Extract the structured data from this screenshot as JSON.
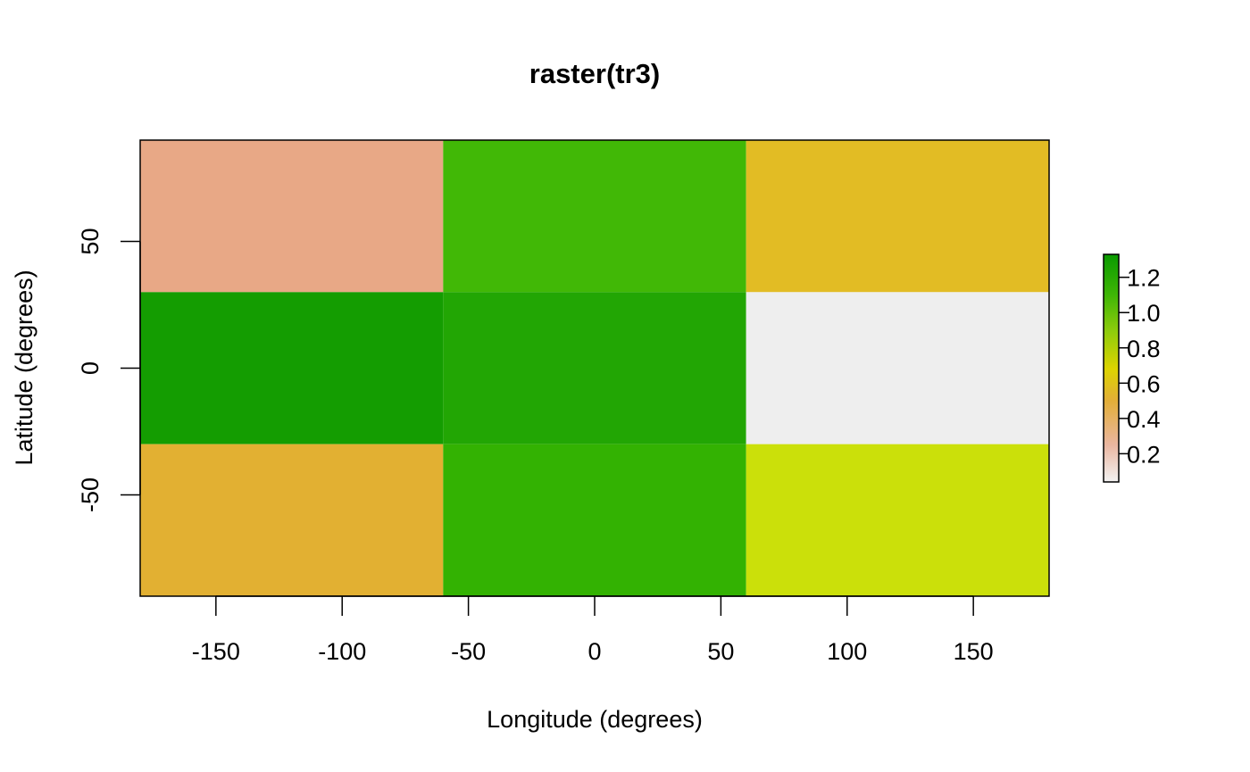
{
  "chart_data": {
    "type": "heatmap",
    "title": "raster(tr3)",
    "xlabel": "Longitude (degrees)",
    "ylabel": "Latitude (degrees)",
    "xlim": [
      -180,
      180
    ],
    "ylim": [
      -90,
      90
    ],
    "x_ticks": [
      -150,
      -100,
      -50,
      0,
      50,
      100,
      150
    ],
    "x_tick_labels": [
      "-150",
      "-100",
      "-50",
      "0",
      "50",
      "100",
      "150"
    ],
    "y_ticks": [
      -50,
      0,
      50
    ],
    "y_tick_labels": [
      "-50",
      "0",
      "50"
    ],
    "grid": false,
    "cells": [
      {
        "x0": -180,
        "x1": -60,
        "y0": 30,
        "y1": 90,
        "value": 0.33,
        "color": "#E8A886"
      },
      {
        "x0": -60,
        "x1": 60,
        "y0": 30,
        "y1": 90,
        "value": 1.07,
        "color": "#41B806"
      },
      {
        "x0": 60,
        "x1": 180,
        "y0": 30,
        "y1": 90,
        "value": 0.58,
        "color": "#E2BC24"
      },
      {
        "x0": -180,
        "x1": -60,
        "y0": -30,
        "y1": 30,
        "value": 1.31,
        "color": "#149D01"
      },
      {
        "x0": -60,
        "x1": 60,
        "y0": -30,
        "y1": 30,
        "value": 1.23,
        "color": "#22A604"
      },
      {
        "x0": 60,
        "x1": 180,
        "y0": -30,
        "y1": 30,
        "value": 0.04,
        "color": "#EEEEEE"
      },
      {
        "x0": -180,
        "x1": -60,
        "y0": -90,
        "y1": -30,
        "value": 0.52,
        "color": "#E2B032"
      },
      {
        "x0": -60,
        "x1": 60,
        "y0": -90,
        "y1": -30,
        "value": 1.12,
        "color": "#33B202"
      },
      {
        "x0": 60,
        "x1": 180,
        "y0": -90,
        "y1": -30,
        "value": 0.78,
        "color": "#CBE00A"
      }
    ],
    "legend": {
      "placement": "right",
      "zlim": [
        0.04,
        1.33
      ],
      "ticks": [
        0.2,
        0.4,
        0.6,
        0.8,
        1.0,
        1.2
      ],
      "tick_labels": [
        "0.2",
        "0.4",
        "0.6",
        "0.8",
        "1.0",
        "1.2"
      ],
      "gradient_stops": [
        {
          "value": 0.04,
          "color": "#F2F2F2"
        },
        {
          "value": 0.25,
          "color": "#EAB6A0"
        },
        {
          "value": 0.5,
          "color": "#E2AE38"
        },
        {
          "value": 0.68,
          "color": "#DDD400"
        },
        {
          "value": 0.9,
          "color": "#8CCB0C"
        },
        {
          "value": 1.1,
          "color": "#3FB606"
        },
        {
          "value": 1.33,
          "color": "#0A9A00"
        }
      ]
    }
  }
}
